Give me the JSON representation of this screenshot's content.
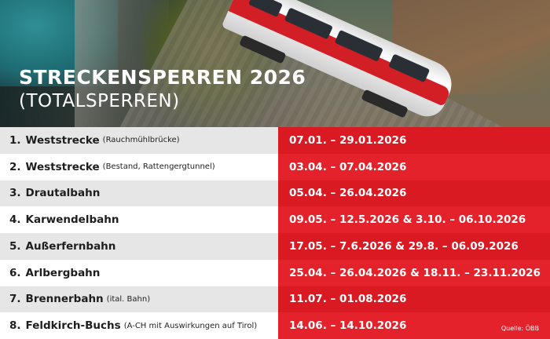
{
  "header": {
    "title": "STRECKENSPERREN 2026",
    "subtitle": "(TOTALSPERREN)"
  },
  "rows": [
    {
      "number": "1.",
      "name": "Weststrecke",
      "note": "(Rauchmühlbrücke)",
      "dates": "07.01. – 29.01.2026"
    },
    {
      "number": "2.",
      "name": "Weststrecke",
      "note": "(Bestand, Rattengergtunnel)",
      "dates": "03.04. – 07.04.2026"
    },
    {
      "number": "3.",
      "name": "Drautalbahn",
      "note": "",
      "dates": "05.04. – 26.04.2026"
    },
    {
      "number": "4.",
      "name": "Karwendelbahn",
      "note": "",
      "dates": "09.05. – 12.5.2026 & 3.10. – 06.10.2026"
    },
    {
      "number": "5.",
      "name": "Außerfernbahn",
      "note": "",
      "dates": "17.05. – 7.6.2026 & 29.8. – 06.09.2026"
    },
    {
      "number": "6.",
      "name": "Arlbergbahn",
      "note": "",
      "dates": "25.04. – 26.04.2026 & 18.11. – 23.11.2026"
    },
    {
      "number": "7.",
      "name": "Brennerbahn",
      "note": "(ital. Bahn)",
      "dates": "11.07. – 01.08.2026"
    },
    {
      "number": "8.",
      "name": "Feldkirch-Buchs",
      "note": "(A-CH mit Auswirkungen auf Tirol)",
      "dates": "14.06. – 14.10.2026"
    }
  ],
  "source": "Quelle: ÖBB",
  "colors": {
    "red_dark": "#d91a23",
    "red_light": "#e4222b",
    "grey_row": "#e6e6e6",
    "white_row": "#ffffff"
  }
}
